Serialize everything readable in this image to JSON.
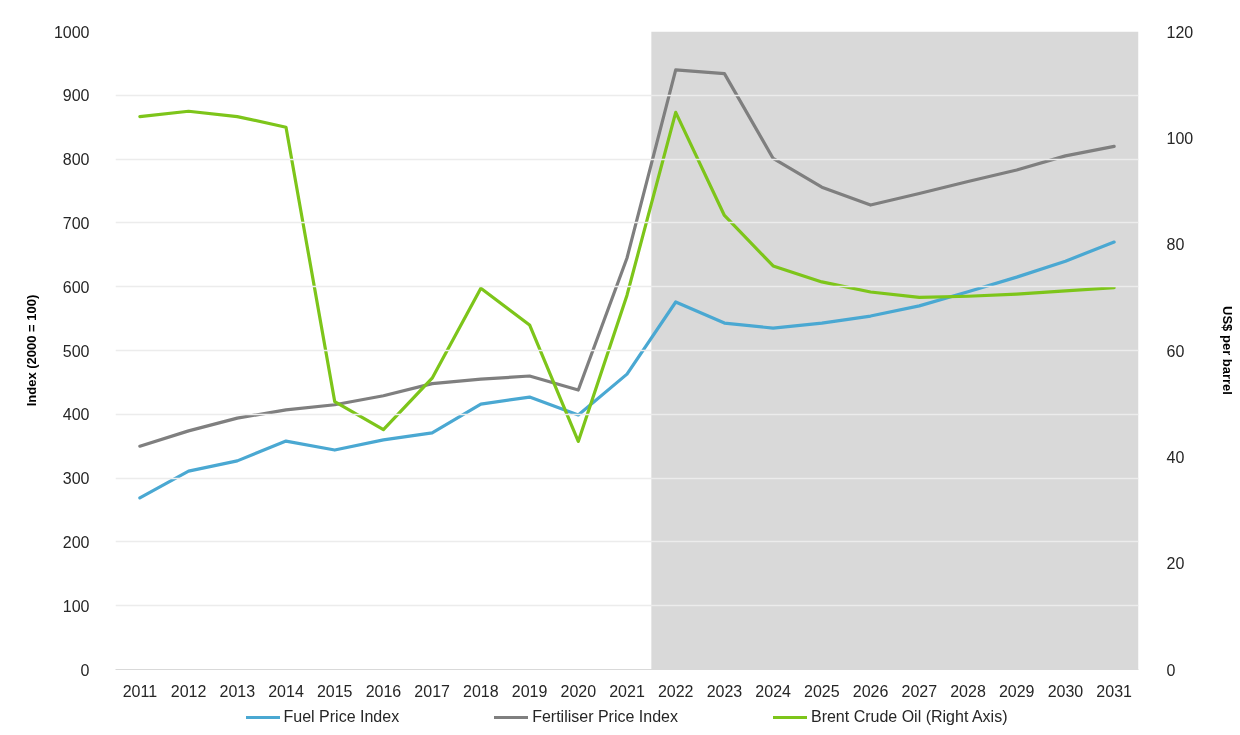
{
  "chart_data": {
    "type": "line",
    "x": [
      2011,
      2012,
      2013,
      2014,
      2015,
      2016,
      2017,
      2018,
      2019,
      2020,
      2021,
      2022,
      2023,
      2024,
      2025,
      2026,
      2027,
      2028,
      2029,
      2030,
      2031
    ],
    "xlim": [
      2010.5,
      2031.5
    ],
    "xticks": [
      2011,
      2012,
      2013,
      2014,
      2015,
      2016,
      2017,
      2018,
      2019,
      2020,
      2021,
      2022,
      2023,
      2024,
      2025,
      2026,
      2027,
      2028,
      2029,
      2030,
      2031
    ],
    "ylim": [
      0,
      1000
    ],
    "yticks": [
      0,
      100,
      200,
      300,
      400,
      500,
      600,
      700,
      800,
      900,
      1000
    ],
    "y2lim": [
      0,
      120
    ],
    "y2ticks": [
      0,
      20,
      40,
      60,
      80,
      100,
      120
    ],
    "ylabel": "Index (2000 = 100)",
    "y2label": "US$ per barrel",
    "series": [
      {
        "name": "Fuel Price Index",
        "color": "#4aa8d2",
        "values": [
          269,
          311,
          327,
          358,
          344,
          360,
          371,
          416,
          427,
          399,
          463,
          576,
          543,
          535,
          543,
          554,
          570,
          592,
          615,
          640,
          670
        ]
      },
      {
        "name": "Fertiliser Price Index",
        "color": "#7f7f7f",
        "values": [
          350,
          374,
          394,
          407,
          415,
          429,
          448,
          455,
          460,
          438,
          645,
          940,
          934,
          801,
          756,
          728,
          746,
          765,
          783,
          805,
          820
        ]
      },
      {
        "name": "Brent Crude Oil (Right Axis)",
        "color": "#7dc51a",
        "axis": "y2",
        "values": [
          104,
          105,
          104,
          102,
          50.4,
          45.1,
          54.8,
          71.7,
          64.8,
          42.9,
          70.4,
          104.8,
          85.4,
          75.9,
          72.9,
          71.0,
          70.0,
          70.2,
          70.6,
          71.2,
          71.8
        ]
      }
    ],
    "bands": [
      {
        "axis": "x",
        "from": 2021.5,
        "to": 2031.5,
        "color": "#d9d9d9"
      }
    ],
    "grid": "y",
    "legend": "bottom",
    "line_style": "solid"
  }
}
